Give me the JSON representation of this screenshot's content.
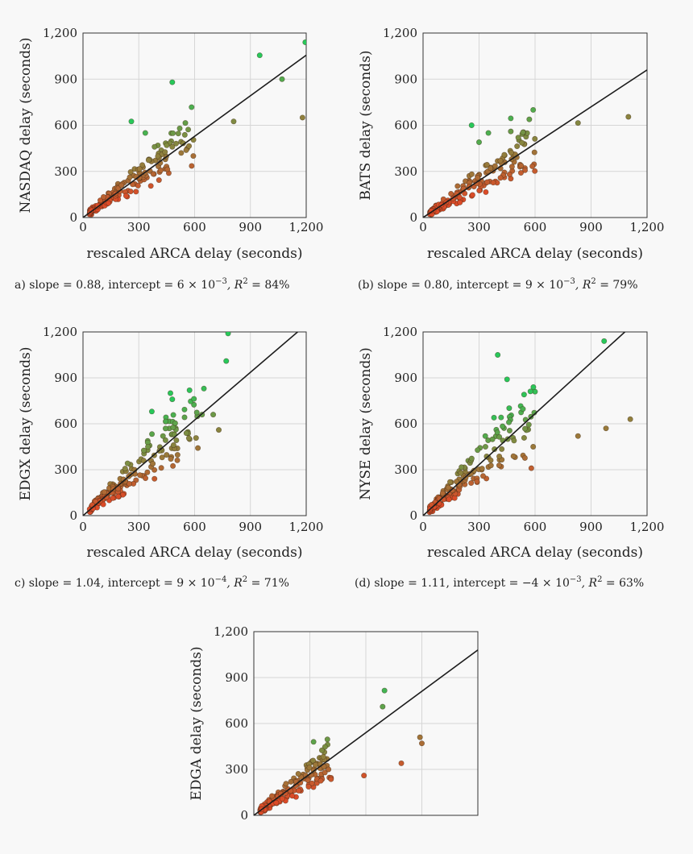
{
  "figure": {
    "panels": [
      {
        "key": "a",
        "ylabel": "NASDAQ delay (seconds)",
        "caption": "a)  slope = 0.88,  intercept = 6 × 10",
        "caption_exp": "−3",
        "caption_r2": ",  R",
        "caption_r2_exp": "2",
        "caption_tail": " = 84%"
      },
      {
        "key": "b",
        "ylabel": "BATS delay (seconds)",
        "caption": "(b)  slope = 0.80,  intercept = 9 × 10",
        "caption_exp": "−3",
        "caption_r2": ",  R",
        "caption_r2_exp": "2",
        "caption_tail": " = 79%"
      },
      {
        "key": "c",
        "ylabel": "EDGX delay (seconds)",
        "caption": "c)  slope = 1.04,  intercept = 9 × 10",
        "caption_exp": "−4",
        "caption_r2": ",  R",
        "caption_r2_exp": "2",
        "caption_tail": " = 71%"
      },
      {
        "key": "d",
        "ylabel": "NYSE delay (seconds)",
        "caption": "(d) slope = 1.11,  intercept = −4 × 10",
        "caption_exp": "−3",
        "caption_r2": ",  R",
        "caption_r2_exp": "2",
        "caption_tail": " = 63%"
      },
      {
        "key": "e",
        "ylabel": "EDGA delay (seconds)",
        "caption": "",
        "caption_exp": "",
        "caption_r2": "",
        "caption_r2_exp": "",
        "caption_tail": ""
      }
    ]
  },
  "chart_data": [
    {
      "type": "scatter",
      "panel": "a",
      "xlabel": "rescaled ARCA delay (seconds)",
      "ylabel": "NASDAQ delay (seconds)",
      "xlim": [
        0,
        1200
      ],
      "ylim": [
        0,
        1200
      ],
      "xticks": [
        "0",
        "300",
        "600",
        "900",
        "1,200"
      ],
      "yticks": [
        "0",
        "300",
        "600",
        "900",
        "1,200"
      ],
      "fit": {
        "slope": 0.88,
        "intercept": 0.006
      },
      "r2_percent": 84,
      "outliers": [
        [
          260,
          625
        ],
        [
          480,
          880
        ],
        [
          810,
          625
        ],
        [
          950,
          1055
        ],
        [
          1070,
          900
        ],
        [
          1180,
          650
        ],
        [
          1195,
          1140
        ],
        [
          335,
          550
        ],
        [
          520,
          580
        ],
        [
          570,
          465
        ],
        [
          450,
          470
        ],
        [
          480,
          460
        ]
      ],
      "cluster": {
        "count": 170,
        "x_max": 600,
        "spread": 0.2,
        "seed": 11
      }
    },
    {
      "type": "scatter",
      "panel": "b",
      "xlabel": "rescaled ARCA delay (seconds)",
      "ylabel": "BATS delay (seconds)",
      "xlim": [
        0,
        1200
      ],
      "ylim": [
        0,
        1200
      ],
      "xticks": [
        "0",
        "300",
        "600",
        "900",
        "1,200"
      ],
      "yticks": [
        "0",
        "300",
        "600",
        "900",
        "1,200"
      ],
      "fit": {
        "slope": 0.8,
        "intercept": 0.009
      },
      "r2_percent": 79,
      "outliers": [
        [
          260,
          600
        ],
        [
          470,
          645
        ],
        [
          590,
          700
        ],
        [
          830,
          615
        ],
        [
          1100,
          655
        ],
        [
          350,
          550
        ],
        [
          470,
          560
        ],
        [
          510,
          520
        ],
        [
          300,
          490
        ]
      ],
      "cluster": {
        "count": 170,
        "x_max": 600,
        "spread": 0.2,
        "seed": 23
      }
    },
    {
      "type": "scatter",
      "panel": "c",
      "xlabel": "rescaled ARCA delay (seconds)",
      "ylabel": "EDGX delay (seconds)",
      "xlim": [
        0,
        1200
      ],
      "ylim": [
        0,
        1200
      ],
      "xticks": [
        "0",
        "300",
        "600",
        "900",
        "1,200"
      ],
      "yticks": [
        "0",
        "300",
        "600",
        "900",
        "1,200"
      ],
      "fit": {
        "slope": 1.04,
        "intercept": 0.0009
      },
      "r2_percent": 71,
      "outliers": [
        [
          780,
          1190
        ],
        [
          770,
          1010
        ],
        [
          650,
          830
        ],
        [
          470,
          800
        ],
        [
          370,
          680
        ],
        [
          640,
          660
        ],
        [
          700,
          660
        ],
        [
          730,
          560
        ],
        [
          430,
          520
        ],
        [
          480,
          760
        ]
      ],
      "cluster": {
        "count": 170,
        "x_max": 620,
        "spread": 0.22,
        "seed": 37
      }
    },
    {
      "type": "scatter",
      "panel": "d",
      "xlabel": "rescaled ARCA delay (seconds)",
      "ylabel": "NYSE delay (seconds)",
      "xlim": [
        0,
        1200
      ],
      "ylim": [
        0,
        1200
      ],
      "xticks": [
        "0",
        "300",
        "600",
        "900",
        "1,200"
      ],
      "yticks": [
        "0",
        "300",
        "600",
        "900",
        "1,200"
      ],
      "fit": {
        "slope": 1.11,
        "intercept": -0.004
      },
      "r2_percent": 63,
      "outliers": [
        [
          970,
          1140
        ],
        [
          400,
          1050
        ],
        [
          450,
          890
        ],
        [
          830,
          520
        ],
        [
          980,
          570
        ],
        [
          1110,
          630
        ],
        [
          590,
          450
        ],
        [
          580,
          310
        ],
        [
          380,
          640
        ],
        [
          460,
          610
        ]
      ],
      "cluster": {
        "count": 170,
        "x_max": 600,
        "spread": 0.22,
        "seed": 51
      }
    },
    {
      "type": "scatter",
      "panel": "e",
      "xlabel": "",
      "ylabel": "EDGA delay (seconds)",
      "xlim": [
        0,
        1200
      ],
      "ylim": [
        0,
        1200
      ],
      "xticks": [],
      "yticks": [
        "0",
        "300",
        "600",
        "900",
        "1,200"
      ],
      "fit": {
        "slope": 0.9,
        "intercept": 0.0
      },
      "r2_percent": null,
      "outliers": [
        [
          700,
          815
        ],
        [
          690,
          710
        ],
        [
          890,
          510
        ],
        [
          900,
          470
        ],
        [
          790,
          340
        ],
        [
          590,
          260
        ],
        [
          320,
          480
        ],
        [
          400,
          300
        ]
      ],
      "cluster": {
        "count": 170,
        "x_max": 420,
        "spread": 0.22,
        "seed": 67
      }
    }
  ]
}
